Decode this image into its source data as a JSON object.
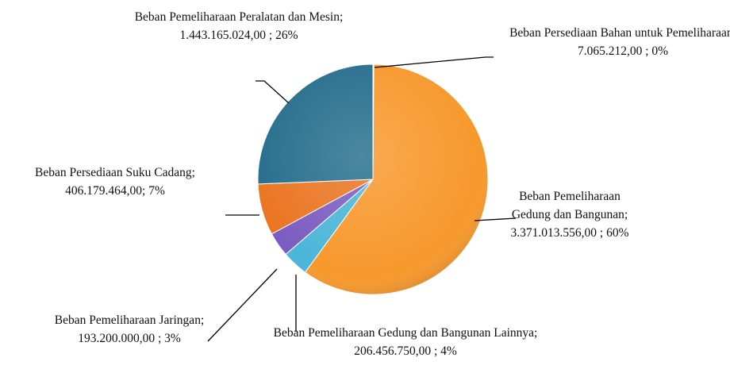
{
  "chart_data": {
    "type": "pie",
    "categories": [
      "Beban Persediaan Bahan untuk Pemeliharaan",
      "Beban Pemeliharaan Gedung dan Bangunan",
      "Beban Pemeliharaan Gedung dan Bangunan Lainnya",
      "Beban Pemeliharaan Jaringan",
      "Beban Persediaan Suku Cadang",
      "Beban Pemeliharaan Peralatan dan Mesin"
    ],
    "values": [
      7065212,
      3371013556,
      206456750,
      193200000,
      406179464,
      1443165024
    ],
    "value_labels": [
      ";  7.065.212,00 ; 0%",
      "; 3.371.013.556,00 ; 60%",
      ";  206.456.750,00 ; 4%",
      "; 193.200.000,00 ; 3%",
      "; 406.179.464,00; 7%",
      ";  1.443.165.024,00 ; 26%"
    ],
    "colors": [
      "#9bbb59",
      "#f7982c",
      "#4ab6d8",
      "#7b5cc0",
      "#ea7420",
      "#256d8c"
    ]
  }
}
